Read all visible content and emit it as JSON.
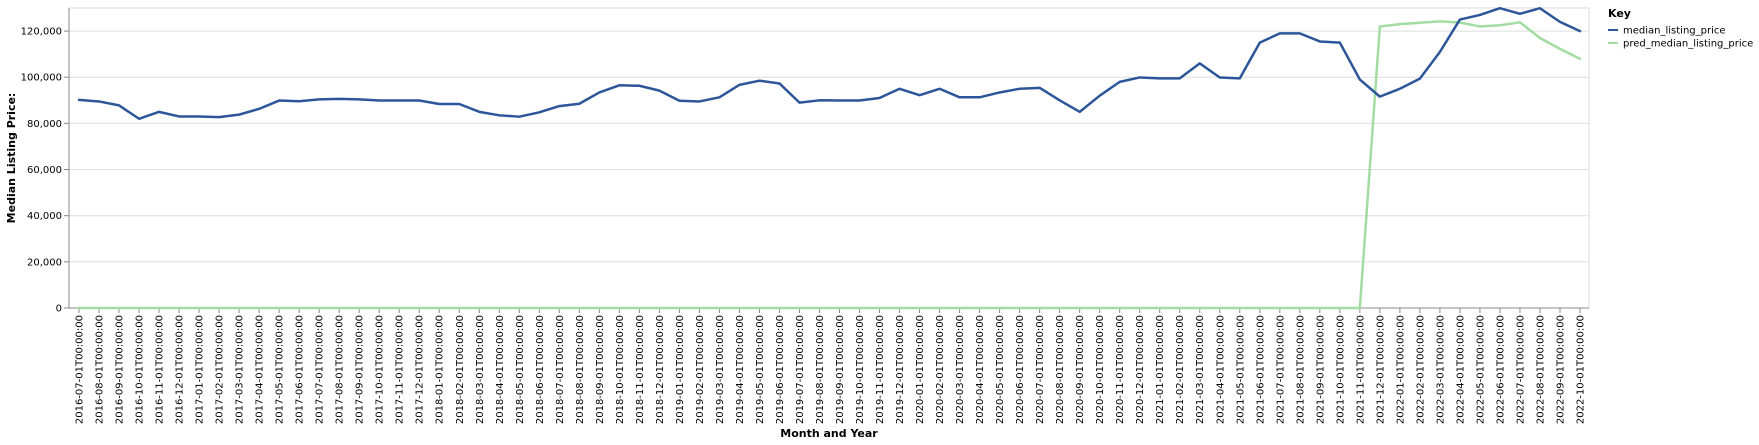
{
  "chart_data": {
    "type": "line",
    "title": "",
    "xlabel": "Month and Year",
    "ylabel": "Median Listing Price:",
    "ylim": [
      0,
      130000
    ],
    "yticks": [
      0,
      20000,
      40000,
      60000,
      80000,
      100000,
      120000
    ],
    "ytick_labels": [
      "0",
      "20,000",
      "40,000",
      "60,000",
      "80,000",
      "100,000",
      "120,000"
    ],
    "grid": true,
    "legend": {
      "title": "Key",
      "position": "right"
    },
    "categories": [
      "2016-07-01T00:00:00",
      "2016-08-01T00:00:00",
      "2016-09-01T00:00:00",
      "2016-10-01T00:00:00",
      "2016-11-01T00:00:00",
      "2016-12-01T00:00:00",
      "2017-01-01T00:00:00",
      "2017-02-01T00:00:00",
      "2017-03-01T00:00:00",
      "2017-04-01T00:00:00",
      "2017-05-01T00:00:00",
      "2017-06-01T00:00:00",
      "2017-07-01T00:00:00",
      "2017-08-01T00:00:00",
      "2017-09-01T00:00:00",
      "2017-10-01T00:00:00",
      "2017-11-01T00:00:00",
      "2017-12-01T00:00:00",
      "2018-01-01T00:00:00",
      "2018-02-01T00:00:00",
      "2018-03-01T00:00:00",
      "2018-04-01T00:00:00",
      "2018-05-01T00:00:00",
      "2018-06-01T00:00:00",
      "2018-07-01T00:00:00",
      "2018-08-01T00:00:00",
      "2018-09-01T00:00:00",
      "2018-10-01T00:00:00",
      "2018-11-01T00:00:00",
      "2018-12-01T00:00:00",
      "2019-01-01T00:00:00",
      "2019-02-01T00:00:00",
      "2019-03-01T00:00:00",
      "2019-04-01T00:00:00",
      "2019-05-01T00:00:00",
      "2019-06-01T00:00:00",
      "2019-07-01T00:00:00",
      "2019-08-01T00:00:00",
      "2019-09-01T00:00:00",
      "2019-10-01T00:00:00",
      "2019-11-01T00:00:00",
      "2019-12-01T00:00:00",
      "2020-01-01T00:00:00",
      "2020-02-01T00:00:00",
      "2020-03-01T00:00:00",
      "2020-04-01T00:00:00",
      "2020-05-01T00:00:00",
      "2020-06-01T00:00:00",
      "2020-07-01T00:00:00",
      "2020-08-01T00:00:00",
      "2020-09-01T00:00:00",
      "2020-10-01T00:00:00",
      "2020-11-01T00:00:00",
      "2020-12-01T00:00:00",
      "2021-01-01T00:00:00",
      "2021-02-01T00:00:00",
      "2021-03-01T00:00:00",
      "2021-04-01T00:00:00",
      "2021-05-01T00:00:00",
      "2021-06-01T00:00:00",
      "2021-07-01T00:00:00",
      "2021-08-01T00:00:00",
      "2021-09-01T00:00:00",
      "2021-10-01T00:00:00",
      "2021-11-01T00:00:00",
      "2021-12-01T00:00:00",
      "2022-01-01T00:00:00",
      "2022-02-01T00:00:00",
      "2022-03-01T00:00:00",
      "2022-04-01T00:00:00",
      "2022-05-01T00:00:00",
      "2022-06-01T00:00:00",
      "2022-07-01T00:00:00",
      "2022-08-01T00:00:00",
      "2022-09-01T00:00:00",
      "2022-10-01T00:00:00"
    ],
    "series": [
      {
        "name": "median_listing_price",
        "color": "#2c5699",
        "values": [
          90200,
          89500,
          87800,
          82000,
          85000,
          83000,
          83000,
          82700,
          83800,
          86300,
          89900,
          89600,
          90400,
          90600,
          90400,
          89900,
          89900,
          89900,
          88400,
          88400,
          85000,
          83500,
          82900,
          84800,
          87500,
          88500,
          93400,
          96500,
          96300,
          94200,
          89800,
          89500,
          91300,
          96700,
          98500,
          97300,
          89000,
          90000,
          89900,
          89900,
          91000,
          95000,
          92200,
          95000,
          91300,
          91300,
          93400,
          95000,
          95400,
          90000,
          85000,
          92000,
          98000,
          99900,
          99500,
          99500,
          106000,
          99900,
          99500,
          115000,
          119000,
          119000,
          115500,
          115000,
          99000,
          91600,
          95000,
          99400,
          111000,
          125000,
          127000,
          129900,
          127500,
          129900,
          124000,
          120000
        ]
      },
      {
        "name": "pred_median_listing_price",
        "color": "#a3dca0",
        "values": [
          0,
          0,
          0,
          0,
          0,
          0,
          0,
          0,
          0,
          0,
          0,
          0,
          0,
          0,
          0,
          0,
          0,
          0,
          0,
          0,
          0,
          0,
          0,
          0,
          0,
          0,
          0,
          0,
          0,
          0,
          0,
          0,
          0,
          0,
          0,
          0,
          0,
          0,
          0,
          0,
          0,
          0,
          0,
          0,
          0,
          0,
          0,
          0,
          0,
          0,
          0,
          0,
          0,
          0,
          0,
          0,
          0,
          0,
          0,
          0,
          0,
          0,
          0,
          0,
          0,
          122000,
          123000,
          123600,
          124200,
          123700,
          122000,
          122500,
          123800,
          117000,
          112300,
          108000
        ]
      }
    ]
  }
}
